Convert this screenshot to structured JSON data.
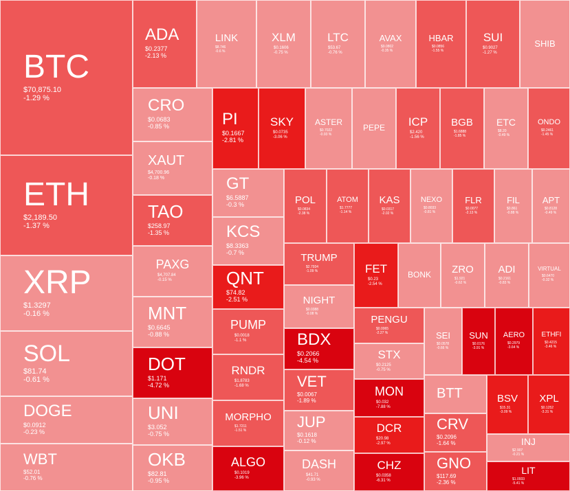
{
  "chart_data": {
    "type": "treemap",
    "colors": {
      "light": "#f29191",
      "mid": "#ee5757",
      "dark": "#e91b1b",
      "deep": "#d9030f"
    },
    "tiles": [
      {
        "symbol": "BTC",
        "price": "$70,875.10",
        "change": "-1.29 %",
        "change_pct": -1.29
      },
      {
        "symbol": "ETH",
        "price": "$2,189.50",
        "change": "-1.37 %",
        "change_pct": -1.37
      },
      {
        "symbol": "XRP",
        "price": "$1.3297",
        "change": "-0.16 %",
        "change_pct": -0.16
      },
      {
        "symbol": "SOL",
        "price": "$81.74",
        "change": "-0.61 %",
        "change_pct": -0.61
      },
      {
        "symbol": "DOGE",
        "price": "$0.0912",
        "change": "-0.23 %",
        "change_pct": -0.23
      },
      {
        "symbol": "WBT",
        "price": "$52.01",
        "change": "-0.76 %",
        "change_pct": -0.76
      },
      {
        "symbol": "ADA",
        "price": "$0.2377",
        "change": "-2.13 %",
        "change_pct": -2.13
      },
      {
        "symbol": "CRO",
        "price": "$0.0683",
        "change": "-0.85 %",
        "change_pct": -0.85
      },
      {
        "symbol": "XAUT",
        "price": "$4,700.96",
        "change": "-0.18 %",
        "change_pct": -0.18
      },
      {
        "symbol": "TAO",
        "price": "$258.97",
        "change": "-1.35 %",
        "change_pct": -1.35
      },
      {
        "symbol": "PAXG",
        "price": "$4,707.84",
        "change": "-0.15 %",
        "change_pct": -0.15
      },
      {
        "symbol": "MNT",
        "price": "$0.6645",
        "change": "-0.88 %",
        "change_pct": -0.88
      },
      {
        "symbol": "DOT",
        "price": "$1.171",
        "change": "-4.72 %",
        "change_pct": -4.72
      },
      {
        "symbol": "UNI",
        "price": "$3.052",
        "change": "-0.75 %",
        "change_pct": -0.75
      },
      {
        "symbol": "OKB",
        "price": "$82.81",
        "change": "-0.95 %",
        "change_pct": -0.95
      },
      {
        "symbol": "LINK",
        "price": "$8.746",
        "change": "-0.6 %",
        "change_pct": -0.6
      },
      {
        "symbol": "XLM",
        "price": "$0.1606",
        "change": "-0.75 %",
        "change_pct": -0.75
      },
      {
        "symbol": "LTC",
        "price": "$53.67",
        "change": "-0.76 %",
        "change_pct": -0.76
      },
      {
        "symbol": "AVAX",
        "price": "$9.0802",
        "change": "-0.35 %",
        "change_pct": -0.35
      },
      {
        "symbol": "HBAR",
        "price": "$0.0856",
        "change": "-1.55 %",
        "change_pct": -1.55
      },
      {
        "symbol": "SUI",
        "price": "$0.9027",
        "change": "-1.27 %",
        "change_pct": -1.27
      },
      {
        "symbol": "SHIB",
        "price": "",
        "change": "",
        "change_pct": null
      },
      {
        "symbol": "PI",
        "price": "$0.1667",
        "change": "-2.81 %",
        "change_pct": -2.81
      },
      {
        "symbol": "SKY",
        "price": "$0.0735",
        "change": "-3.06 %",
        "change_pct": -3.06
      },
      {
        "symbol": "ASTER",
        "price": "$0.7022",
        "change": "-0.93 %",
        "change_pct": -0.93
      },
      {
        "symbol": "PEPE",
        "price": "",
        "change": "",
        "change_pct": null
      },
      {
        "symbol": "ICP",
        "price": "$2.420",
        "change": "-1.56 %",
        "change_pct": -1.56
      },
      {
        "symbol": "BGB",
        "price": "$1.6888",
        "change": "-1.85 %",
        "change_pct": -1.85
      },
      {
        "symbol": "ETC",
        "price": "$8.20",
        "change": "-0.49 %",
        "change_pct": -0.49
      },
      {
        "symbol": "ONDO",
        "price": "$0.2461",
        "change": "-1.45 %",
        "change_pct": -1.45
      },
      {
        "symbol": "GT",
        "price": "$6.5887",
        "change": "-0.3 %",
        "change_pct": -0.3
      },
      {
        "symbol": "KCS",
        "price": "$8.3363",
        "change": "-0.7 %",
        "change_pct": -0.7
      },
      {
        "symbol": "POL",
        "price": "$0.0834",
        "change": "-2.38 %",
        "change_pct": -2.38
      },
      {
        "symbol": "ATOM",
        "price": "$1.7777",
        "change": "-1.14 %",
        "change_pct": -1.14
      },
      {
        "symbol": "KAS",
        "price": "$0.0317",
        "change": "-2.02 %",
        "change_pct": -2.02
      },
      {
        "symbol": "NEXO",
        "price": "$0.8033",
        "change": "-0.81 %",
        "change_pct": -0.81
      },
      {
        "symbol": "FLR",
        "price": "$0.0077",
        "change": "-2.13 %",
        "change_pct": -2.13
      },
      {
        "symbol": "FIL",
        "price": "$0.861",
        "change": "-0.88 %",
        "change_pct": -0.88
      },
      {
        "symbol": "APT",
        "price": "$0.8128",
        "change": "-0.49 %",
        "change_pct": -0.49
      },
      {
        "symbol": "QNT",
        "price": "$74.82",
        "change": "-2.51 %",
        "change_pct": -2.51
      },
      {
        "symbol": "PUMP",
        "price": "$0.0018",
        "change": "-1.1 %",
        "change_pct": -1.1
      },
      {
        "symbol": "RNDR",
        "price": "$1.8783",
        "change": "-1.68 %",
        "change_pct": -1.68
      },
      {
        "symbol": "MORPHO",
        "price": "$1.7211",
        "change": "-1.51 %",
        "change_pct": -1.51
      },
      {
        "symbol": "ALGO",
        "price": "$0.1019",
        "change": "-3.96 %",
        "change_pct": -3.96
      },
      {
        "symbol": "TRUMP",
        "price": "$2.7934",
        "change": "-1.09 %",
        "change_pct": -1.09
      },
      {
        "symbol": "NIGHT",
        "price": "$0.0388",
        "change": "-0.08 %",
        "change_pct": -0.08
      },
      {
        "symbol": "BDX",
        "price": "$0.2066",
        "change": "-4.54 %",
        "change_pct": -4.54
      },
      {
        "symbol": "VET",
        "price": "$0.0067",
        "change": "-1.89 %",
        "change_pct": -1.89
      },
      {
        "symbol": "JUP",
        "price": "$0.1618",
        "change": "-0.12 %",
        "change_pct": -0.12
      },
      {
        "symbol": "DASH",
        "price": "$41.71",
        "change": "-0.93 %",
        "change_pct": -0.93
      },
      {
        "symbol": "FET",
        "price": "$0.23",
        "change": "-2.54 %",
        "change_pct": -2.54
      },
      {
        "symbol": "BONK",
        "price": "",
        "change": "",
        "change_pct": null
      },
      {
        "symbol": "ZRO",
        "price": "$1.921",
        "change": "-0.62 %",
        "change_pct": -0.62
      },
      {
        "symbol": "ADI",
        "price": "$0.2161",
        "change": "-0.83 %",
        "change_pct": -0.83
      },
      {
        "symbol": "VIRTUAL",
        "price": "$0.6470",
        "change": "-0.32 %",
        "change_pct": -0.32
      },
      {
        "symbol": "PENGU",
        "price": "$0.0065",
        "change": "-2.27 %",
        "change_pct": -2.27
      },
      {
        "symbol": "STX",
        "price": "$0.2125",
        "change": "-0.75 %",
        "change_pct": -0.75
      },
      {
        "symbol": "MON",
        "price": "$0.032",
        "change": "-7.88 %",
        "change_pct": -7.88
      },
      {
        "symbol": "DCR",
        "price": "$20.98",
        "change": "-2.97 %",
        "change_pct": -2.97
      },
      {
        "symbol": "CHZ",
        "price": "$0.0358",
        "change": "-6.31 %",
        "change_pct": -6.31
      },
      {
        "symbol": "SEI",
        "price": "$0.0578",
        "change": "-0.66 %",
        "change_pct": -0.66
      },
      {
        "symbol": "SUN",
        "price": "$0.0176",
        "change": "-3.91 %",
        "change_pct": -3.91
      },
      {
        "symbol": "AERO",
        "price": "$0.2979",
        "change": "-3.64 %",
        "change_pct": -3.64
      },
      {
        "symbol": "ETHFI",
        "price": "$0.4215",
        "change": "-3.46 %",
        "change_pct": -3.46
      },
      {
        "symbol": "BTT",
        "price": "",
        "change": "",
        "change_pct": null
      },
      {
        "symbol": "CRV",
        "price": "$0.2096",
        "change": "-1.64 %",
        "change_pct": -1.64
      },
      {
        "symbol": "GNO",
        "price": "$117.69",
        "change": "-2.36 %",
        "change_pct": -2.36
      },
      {
        "symbol": "BSV",
        "price": "$15.31",
        "change": "-3.09 %",
        "change_pct": -3.09
      },
      {
        "symbol": "XPL",
        "price": "$0.1252",
        "change": "-3.31 %",
        "change_pct": -3.31
      },
      {
        "symbol": "INJ",
        "price": "$2.907",
        "change": "-0.21 %",
        "change_pct": -0.21
      },
      {
        "symbol": "LIT",
        "price": "$1.0933",
        "change": "-5.41 %",
        "change_pct": -5.41
      }
    ]
  }
}
